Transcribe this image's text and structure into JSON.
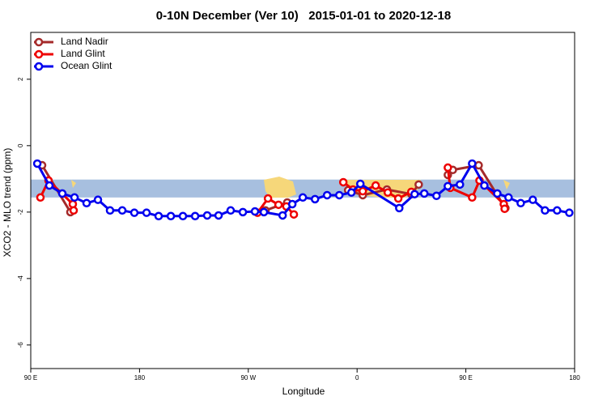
{
  "chart_data": {
    "type": "line",
    "title": "0-10N December (Ver 10)   2015-01-01 to 2020-12-18",
    "x_label": "Longitude",
    "y_label": "XCO2 - MLO trend (ppm)",
    "xlim": [
      90,
      540
    ],
    "ylim": [
      -6.71,
      3.41
    ],
    "xticks": [
      {
        "value": 90,
        "label": "90 E"
      },
      180,
      {
        "value": 270,
        "label": "90 W"
      },
      {
        "value": 360,
        "label": "0"
      },
      {
        "value": 450,
        "label": "90 E"
      },
      {
        "value": 540,
        "label": "180"
      }
    ],
    "yticks": [
      2,
      0,
      -2,
      -4,
      -6
    ],
    "band": {
      "ymin": -1.56,
      "ymax": -1.02,
      "color": "#a7bfdf"
    },
    "legend": "top-left",
    "series": [
      {
        "name": "Land Nadir",
        "color": "#a52a2a",
        "x": [
          99.4,
          122.8,
          null,
          284.2,
          302.2,
          null,
          352.6,
          364.7,
          384.7,
          404.9,
          411,
          null,
          435.1,
          439.2,
          460.6,
          482.7
        ],
        "values": [
          -0.59,
          -2.0,
          null,
          -1.95,
          -1.71,
          null,
          -1.34,
          -1.49,
          -1.32,
          -1.46,
          -1.17,
          null,
          -0.88,
          -0.73,
          -0.59,
          -1.88
        ]
      },
      {
        "name": "Land Glint",
        "color": "#ee0000",
        "x": [
          98,
          104.7,
          124.8,
          125.5,
          null,
          277.6,
          286.3,
          295,
          301.5,
          307.7,
          null,
          348.6,
          356.6,
          364.7,
          375.4,
          385.4,
          394.1,
          404.9,
          null,
          435.1,
          437.1,
          455.2,
          461.3,
          481.4,
          482.1
        ],
        "values": [
          -1.56,
          -1.05,
          -1.76,
          -1.95,
          null,
          -2.02,
          -1.59,
          -1.78,
          -1.83,
          -2.07,
          null,
          -1.1,
          -1.32,
          -1.37,
          -1.2,
          -1.41,
          -1.59,
          -1.39,
          null,
          -0.66,
          -1.27,
          -1.56,
          -1.05,
          -1.76,
          -1.9
        ]
      },
      {
        "name": "Ocean Glint",
        "color": "#0000ee",
        "x": [
          95.4,
          105.4,
          116.1,
          126.2,
          136.2,
          145.6,
          155.6,
          165.7,
          175.7,
          185.8,
          195.8,
          205.9,
          215.9,
          226,
          236,
          245.4,
          255.4,
          265.5,
          275.5,
          282.9,
          298.4,
          306.4,
          315.1,
          325.2,
          335.2,
          345.3,
          355.3,
          362.7,
          394.9,
          407.6,
          415.6,
          425.7,
          435.1,
          445.1,
          455.2,
          465.3,
          476,
          485.3,
          495.4,
          505.4,
          515.5,
          525.5,
          535.6
        ],
        "values": [
          -0.54,
          -1.2,
          -1.44,
          -1.56,
          -1.73,
          -1.63,
          -1.95,
          -1.95,
          -2.02,
          -2.02,
          -2.12,
          -2.12,
          -2.12,
          -2.12,
          -2.1,
          -2.1,
          -1.95,
          -2.0,
          -1.98,
          -2.0,
          -2.1,
          -1.76,
          -1.56,
          -1.61,
          -1.49,
          -1.49,
          -1.41,
          -1.15,
          -1.88,
          -1.46,
          -1.44,
          -1.51,
          -1.22,
          -1.17,
          -0.54,
          -1.2,
          -1.44,
          -1.56,
          -1.73,
          -1.63,
          -1.95,
          -1.95,
          -2.02
        ]
      }
    ]
  }
}
